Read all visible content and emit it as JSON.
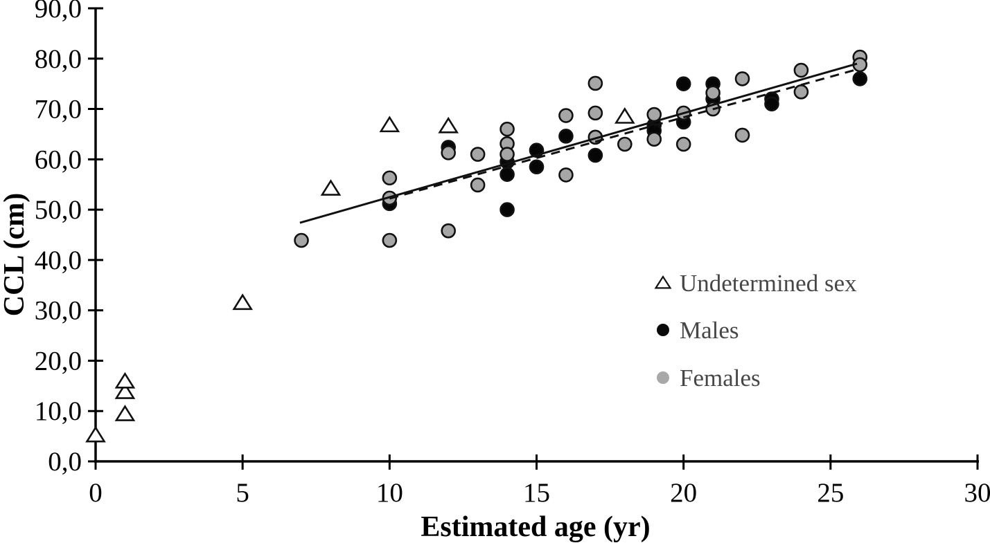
{
  "chart_data": {
    "type": "scatter",
    "title": "",
    "xlabel": "Estimated age (yr)",
    "ylabel": "CCL (cm)",
    "xlim": [
      0,
      30
    ],
    "ylim": [
      0,
      90
    ],
    "x_ticks": [
      0,
      5,
      10,
      15,
      20,
      25,
      30
    ],
    "x_tick_labels": [
      "0",
      "5",
      "10",
      "15",
      "20",
      "25",
      "30"
    ],
    "y_ticks": [
      0,
      10,
      20,
      30,
      40,
      50,
      60,
      70,
      80,
      90
    ],
    "y_tick_labels": [
      "0,0",
      "10,0",
      "20,0",
      "30,0",
      "40,0",
      "50,0",
      "60,0",
      "70,0",
      "80,0",
      "90,0"
    ],
    "grid": false,
    "legend_position": "right-middle",
    "series": [
      {
        "name": "Undetermined sex",
        "marker": "open-triangle",
        "points": [
          [
            0,
            5.2
          ],
          [
            1,
            9.4
          ],
          [
            1,
            13.8
          ],
          [
            1,
            15.9
          ],
          [
            5,
            31.5
          ],
          [
            8,
            54.2
          ],
          [
            10,
            66.8
          ],
          [
            12,
            66.6
          ],
          [
            18,
            68.5
          ]
        ]
      },
      {
        "name": "Males",
        "marker": "black-circle",
        "points": [
          [
            10,
            51.2
          ],
          [
            12,
            62.4
          ],
          [
            14,
            59.5
          ],
          [
            14,
            57.0
          ],
          [
            14,
            50.0
          ],
          [
            15,
            61.8
          ],
          [
            15,
            58.5
          ],
          [
            16,
            64.6
          ],
          [
            17,
            60.8
          ],
          [
            19,
            66.8
          ],
          [
            19,
            65.7
          ],
          [
            20,
            75.0
          ],
          [
            20,
            67.4
          ],
          [
            21,
            75.0
          ],
          [
            21,
            72.0
          ],
          [
            23,
            72.0
          ],
          [
            23,
            71.0
          ],
          [
            26,
            76.0
          ]
        ]
      },
      {
        "name": "Females",
        "marker": "gray-circle",
        "points": [
          [
            7,
            43.9
          ],
          [
            10,
            56.3
          ],
          [
            10,
            52.3
          ],
          [
            10,
            43.9
          ],
          [
            12,
            61.3
          ],
          [
            12,
            45.8
          ],
          [
            13,
            61.0
          ],
          [
            13,
            54.9
          ],
          [
            14,
            66.0
          ],
          [
            14,
            63.1
          ],
          [
            14,
            61.0
          ],
          [
            16,
            68.7
          ],
          [
            16,
            56.9
          ],
          [
            17,
            75.1
          ],
          [
            17,
            69.2
          ],
          [
            17,
            64.4
          ],
          [
            18,
            63.0
          ],
          [
            19,
            68.9
          ],
          [
            19,
            64.0
          ],
          [
            20,
            69.2
          ],
          [
            20,
            63.0
          ],
          [
            21,
            73.2
          ],
          [
            21,
            70.0
          ],
          [
            22,
            76.0
          ],
          [
            22,
            64.8
          ],
          [
            24,
            77.7
          ],
          [
            24,
            73.4
          ],
          [
            26,
            80.3
          ],
          [
            26,
            78.8
          ]
        ]
      }
    ],
    "trend_lines": [
      {
        "name": "solid-regression-line",
        "style": "solid",
        "x1": 6.95,
        "y1": 47.4,
        "x2": 25.9,
        "y2": 79.0
      },
      {
        "name": "dashed-regression-line",
        "style": "dashed",
        "x1": 10.0,
        "y1": 52.2,
        "x2": 25.8,
        "y2": 77.7
      }
    ]
  },
  "colors": {
    "axis": "#000000",
    "marker_stroke": "#111111",
    "male_fill": "#060606",
    "female_fill": "#a6a6a6",
    "triangle_fill": "#fefefe",
    "trend_line": "#111111",
    "legend_text": "#474747",
    "legend_female_fill": "#a8a8a8",
    "legend_male_fill": "#0a0a0a"
  }
}
